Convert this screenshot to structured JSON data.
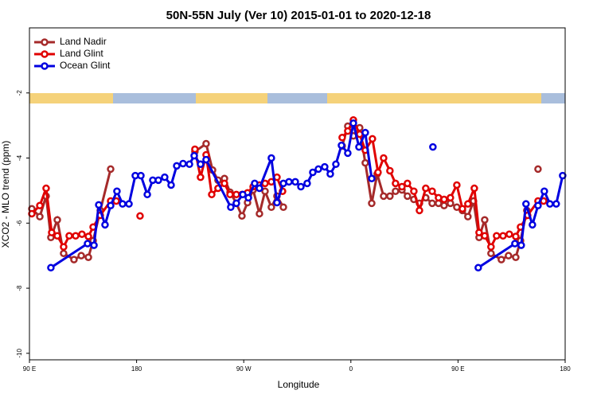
{
  "chart_data": {
    "type": "line",
    "title": "50N-55N July (Ver 10)   2015-01-01 to 2020-12-18",
    "x_label": "Longitude",
    "y_label": "XCO2 - MLO trend (ppm)",
    "xlim": [
      90,
      540
    ],
    "ylim": [
      -10.2,
      0
    ],
    "xticks": [
      {
        "value": 90,
        "label": "90 E"
      },
      {
        "value": 180,
        "label": "180"
      },
      {
        "value": 270,
        "label": "90 W"
      },
      {
        "value": 360,
        "label": "0"
      },
      {
        "value": 450,
        "label": "90 E"
      },
      {
        "value": 540,
        "label": "180"
      }
    ],
    "yticks": [
      -2,
      -4,
      -6,
      -8,
      -10
    ],
    "legend": "top-left",
    "series": [
      {
        "name": "Land Nadir",
        "color": "#a52a2a",
        "x": [
          92,
          98.7,
          104,
          108,
          113.4,
          118.7,
          127.4,
          133.5,
          139.5,
          143.5,
          149.5,
          158.2,
          null,
          229,
          238.4,
          243.8,
          248.4,
          253.8,
          258.5,
          263.8,
          268.5,
          273.2,
          277.9,
          283.2,
          287.9,
          293.2,
          297.9,
          303.3,
          null,
          352.7,
          357.4,
          362.1,
          367.4,
          372.1,
          377.5,
          382.1,
          387.5,
          392.8,
          397.5,
          402.9,
          407.5,
          412.9,
          417.6,
          422.9,
          428.3,
          433.6,
          438.3,
          443.6,
          449,
          453.7,
          458.3,
          463,
          467.7,
          472.4,
          477.7,
          486.4,
          492.4,
          498.5,
          502.5,
          507.8,
          null,
          517.2
        ],
        "values": [
          -5.56,
          -5.8,
          -5.17,
          -6.44,
          -5.9,
          -6.93,
          -7.12,
          -7.0,
          -7.05,
          -6.54,
          -5.61,
          -4.34,
          null,
          -3.8,
          -3.56,
          -4.37,
          -4.68,
          -4.63,
          -5.05,
          -5.39,
          -5.78,
          -5.37,
          -4.98,
          -5.71,
          -5.02,
          -5.51,
          -5.17,
          -5.51,
          null,
          -3.63,
          -3.02,
          -3.32,
          -3.07,
          -4.15,
          -5.39,
          -4.49,
          -5.17,
          -5.17,
          -5.02,
          -4.98,
          -5.17,
          -5.27,
          -5.39,
          -5.22,
          -5.39,
          -5.39,
          -5.46,
          -5.39,
          -5.51,
          -5.61,
          -5.8,
          -5.32,
          -6.44,
          -5.9,
          -6.93,
          -7.12,
          -7.0,
          -7.05,
          -6.54,
          -5.61,
          null,
          -4.34
        ]
      },
      {
        "name": "Land Glint",
        "color": "#e00000",
        "x": [
          92,
          98.7,
          104,
          108.7,
          113.4,
          118.7,
          123.4,
          128.8,
          134.1,
          139.5,
          143.5,
          149.5,
          158.2,
          162.9,
          null,
          182.9,
          null,
          229,
          233.7,
          238.4,
          243.1,
          248.4,
          253.8,
          258.5,
          263.8,
          268.5,
          273.2,
          277.9,
          283.2,
          287.9,
          293.2,
          297.9,
          302.6,
          null,
          352.7,
          357.4,
          362.1,
          367.4,
          372.1,
          378.1,
          382.8,
          387.5,
          392.8,
          397.5,
          402.9,
          407.5,
          412.9,
          417.6,
          422.9,
          428.3,
          433.6,
          438.3,
          443.6,
          449,
          453.7,
          458.3,
          463.7,
          467.7,
          472.4,
          477.7,
          482.4,
          487.8,
          493.1,
          498.5,
          502.5,
          508.5,
          517.2,
          521.9
        ],
        "values": [
          -5.71,
          -5.46,
          -4.93,
          -6.29,
          -6.39,
          -6.73,
          -6.39,
          -6.39,
          -6.34,
          -6.41,
          -6.12,
          -5.76,
          -5.32,
          -5.32,
          null,
          -5.78,
          null,
          -3.73,
          -4.59,
          -3.9,
          -5.12,
          -4.93,
          -4.78,
          -5.12,
          -5.12,
          -5.12,
          -5.07,
          -4.88,
          -4.83,
          -4.78,
          -4.73,
          -4.59,
          -5.02,
          null,
          -3.37,
          -3.17,
          -2.83,
          -3.27,
          -3.76,
          -3.41,
          -4.44,
          -4.0,
          -4.39,
          -4.78,
          -4.88,
          -4.78,
          -5.02,
          -5.61,
          -4.93,
          -5.02,
          -5.22,
          -5.27,
          -5.22,
          -4.83,
          -5.56,
          -5.41,
          -4.93,
          -6.29,
          -6.39,
          -6.73,
          -6.39,
          -6.39,
          -6.34,
          -6.41,
          -6.12,
          -5.76,
          -5.32,
          -5.32
        ]
      },
      {
        "name": "Ocean Glint",
        "color": "#0000e0",
        "x": [
          108,
          138.8,
          144.2,
          148.2,
          153.5,
          158.2,
          163.5,
          168.2,
          173.6,
          178.9,
          183.6,
          189,
          193.6,
          198.3,
          203.6,
          209,
          213.7,
          219,
          224.4,
          228.4,
          233.7,
          238.4,
          259.1,
          263.8,
          269.2,
          273.9,
          279.2,
          283.2,
          293.2,
          297.9,
          303.3,
          308,
          313.3,
          318,
          323.3,
          328,
          332.7,
          338,
          342.7,
          347.4,
          352.1,
          357.4,
          362.1,
          366.8,
          372.1,
          377.5,
          null,
          428.9,
          null,
          467,
          497.8,
          503.1,
          507.1,
          512.5,
          517.2,
          522.5,
          527.2,
          532.5,
          537.9
        ],
        "values": [
          -7.37,
          -6.63,
          -6.68,
          -5.44,
          -6.05,
          -5.46,
          -5.02,
          -5.41,
          -5.41,
          -4.54,
          -4.54,
          -5.12,
          -4.68,
          -4.68,
          -4.59,
          -4.83,
          -4.24,
          -4.17,
          -4.19,
          -3.93,
          -4.19,
          -4.05,
          -5.51,
          -5.39,
          -5.12,
          -5.22,
          -4.78,
          -4.93,
          -4.0,
          -5.37,
          -4.78,
          -4.73,
          -4.73,
          -4.88,
          -4.78,
          -4.44,
          -4.34,
          -4.27,
          -4.49,
          -4.19,
          -3.61,
          -3.85,
          -2.93,
          -3.66,
          -3.22,
          -4.63,
          null,
          -3.66,
          null,
          -7.37,
          -6.63,
          -6.68,
          -5.41,
          -6.05,
          -5.46,
          -5.02,
          -5.41,
          -5.41,
          -4.54
        ]
      }
    ]
  }
}
